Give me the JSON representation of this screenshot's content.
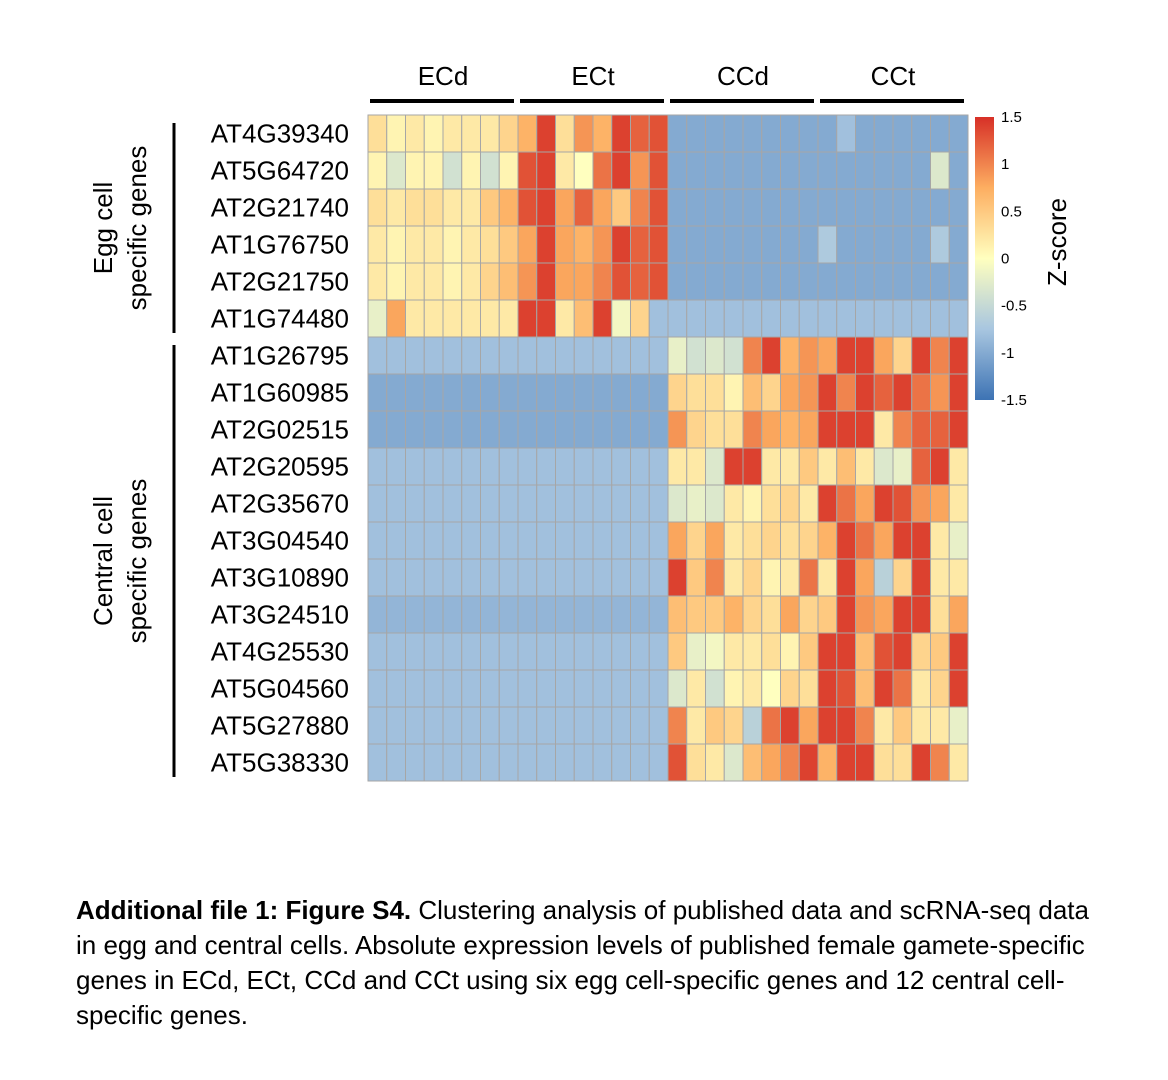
{
  "chart_data": {
    "type": "heatmap",
    "columns": {
      "groups": [
        {
          "label": "ECd",
          "count": 8
        },
        {
          "label": "ECt",
          "count": 8
        },
        {
          "label": "CCd",
          "count": 8
        },
        {
          "label": "CCt",
          "count": 8
        }
      ]
    },
    "row_groups": [
      {
        "label_line1": "Egg cell",
        "label_line2": "specific genes",
        "rows": 6
      },
      {
        "label_line1": "Central cell",
        "label_line2": "specific genes",
        "rows": 12
      }
    ],
    "rows": [
      "AT4G39340",
      "AT5G64720",
      "AT2G21740",
      "AT1G76750",
      "AT2G21750",
      "AT1G74480",
      "AT1G26795",
      "AT1G60985",
      "AT2G02515",
      "AT2G20595",
      "AT2G35670",
      "AT3G04540",
      "AT3G10890",
      "AT3G24510",
      "AT4G25530",
      "AT5G04560",
      "AT5G27880",
      "AT5G38330"
    ],
    "values": [
      [
        0.3,
        0.1,
        0.2,
        0.1,
        0.2,
        0.2,
        0.2,
        0.4,
        0.7,
        1.4,
        0.3,
        0.9,
        0.7,
        1.4,
        1.2,
        1.3,
        -1.0,
        -1.0,
        -1.0,
        -1.0,
        -1.0,
        -1.0,
        -1.0,
        -1.0,
        -1.0,
        -0.8,
        -1.0,
        -1.0,
        -1.0,
        -1.0,
        -1.0,
        -1.0
      ],
      [
        0.1,
        -0.3,
        0.1,
        0.1,
        -0.4,
        0.1,
        -0.4,
        0.1,
        1.3,
        1.4,
        0.2,
        0.0,
        1.1,
        1.4,
        0.9,
        1.3,
        -1.0,
        -1.0,
        -1.0,
        -1.0,
        -1.0,
        -1.0,
        -1.0,
        -1.0,
        -1.0,
        -1.0,
        -1.0,
        -1.0,
        -1.0,
        -1.0,
        -0.3,
        -1.0
      ],
      [
        0.3,
        0.2,
        0.3,
        0.3,
        0.2,
        0.2,
        0.5,
        0.7,
        1.3,
        1.4,
        0.8,
        1.2,
        0.8,
        0.5,
        1.0,
        1.3,
        -1.0,
        -1.0,
        -1.0,
        -1.0,
        -1.0,
        -1.0,
        -1.0,
        -1.0,
        -1.0,
        -1.0,
        -1.0,
        -1.0,
        -1.0,
        -1.0,
        -1.0,
        -1.0
      ],
      [
        0.2,
        0.1,
        0.2,
        0.2,
        0.1,
        0.2,
        0.3,
        0.5,
        0.8,
        1.4,
        0.8,
        0.7,
        0.9,
        1.4,
        1.2,
        1.3,
        -1.0,
        -1.0,
        -1.0,
        -1.0,
        -1.0,
        -1.0,
        -1.0,
        -1.0,
        -0.7,
        -1.0,
        -1.0,
        -1.0,
        -1.0,
        -1.0,
        -0.7,
        -1.0
      ],
      [
        0.2,
        0.1,
        0.2,
        0.2,
        0.1,
        0.2,
        0.4,
        0.6,
        0.9,
        1.4,
        0.8,
        0.8,
        1.0,
        1.3,
        1.2,
        1.3,
        -1.0,
        -1.0,
        -1.0,
        -1.0,
        -1.0,
        -1.0,
        -1.0,
        -1.0,
        -1.0,
        -1.0,
        -1.0,
        -1.0,
        -1.0,
        -1.0,
        -1.0,
        -1.0
      ],
      [
        -0.2,
        0.8,
        0.2,
        0.2,
        0.2,
        0.2,
        0.2,
        0.2,
        1.4,
        1.4,
        0.2,
        0.6,
        1.4,
        -0.1,
        0.4,
        -0.8,
        -0.8,
        -0.8,
        -0.8,
        -0.8,
        -0.8,
        -0.8,
        -0.8,
        -0.8,
        -0.8,
        -0.8,
        -0.8,
        -0.8,
        -0.8,
        -0.8,
        -0.8,
        -0.8
      ],
      [
        -0.8,
        -0.8,
        -0.8,
        -0.8,
        -0.8,
        -0.8,
        -0.8,
        -0.8,
        -0.8,
        -0.8,
        -0.8,
        -0.8,
        -0.8,
        -0.8,
        -0.8,
        -0.8,
        -0.2,
        -0.4,
        -0.3,
        -0.4,
        1.0,
        1.4,
        0.7,
        0.9,
        0.8,
        1.4,
        1.4,
        0.8,
        0.4,
        1.4,
        1.0,
        1.4
      ],
      [
        -1.0,
        -1.0,
        -1.0,
        -1.0,
        -1.0,
        -1.0,
        -1.0,
        -1.0,
        -1.0,
        -1.0,
        -1.0,
        -1.0,
        -1.0,
        -1.0,
        -1.0,
        -1.0,
        0.4,
        0.3,
        0.3,
        0.1,
        0.6,
        0.4,
        0.8,
        0.9,
        1.4,
        1.0,
        1.4,
        1.2,
        1.4,
        1.1,
        0.9,
        1.4
      ],
      [
        -1.0,
        -1.0,
        -1.0,
        -1.0,
        -1.0,
        -1.0,
        -1.0,
        -1.0,
        -1.0,
        -1.0,
        -1.0,
        -1.0,
        -1.0,
        -1.0,
        -1.0,
        -1.0,
        0.9,
        0.4,
        0.3,
        0.3,
        1.0,
        0.8,
        0.7,
        0.8,
        1.4,
        1.4,
        1.4,
        0.2,
        1.0,
        1.2,
        1.2,
        1.4
      ],
      [
        -0.8,
        -0.8,
        -0.8,
        -0.8,
        -0.8,
        -0.8,
        -0.8,
        -0.8,
        -0.8,
        -0.8,
        -0.8,
        -0.8,
        -0.8,
        -0.8,
        -0.8,
        -0.8,
        0.2,
        0.2,
        -0.3,
        1.4,
        1.4,
        0.2,
        0.2,
        0.5,
        0.2,
        0.6,
        0.2,
        -0.3,
        -0.2,
        1.2,
        1.4,
        0.2
      ],
      [
        -0.8,
        -0.8,
        -0.8,
        -0.8,
        -0.8,
        -0.8,
        -0.8,
        -0.8,
        -0.8,
        -0.8,
        -0.8,
        -0.8,
        -0.8,
        -0.8,
        -0.8,
        -0.8,
        -0.3,
        -0.2,
        -0.3,
        0.2,
        0.1,
        0.3,
        0.4,
        0.2,
        1.4,
        1.1,
        0.8,
        1.4,
        1.3,
        0.9,
        0.8,
        0.2
      ],
      [
        -0.8,
        -0.8,
        -0.8,
        -0.8,
        -0.8,
        -0.8,
        -0.8,
        -0.8,
        -0.8,
        -0.8,
        -0.8,
        -0.8,
        -0.8,
        -0.8,
        -0.8,
        -0.8,
        0.8,
        0.4,
        0.8,
        0.2,
        0.3,
        0.4,
        0.3,
        0.4,
        0.7,
        1.4,
        1.1,
        0.8,
        1.4,
        1.4,
        0.2,
        -0.2
      ],
      [
        -0.8,
        -0.8,
        -0.8,
        -0.8,
        -0.8,
        -0.8,
        -0.8,
        -0.8,
        -0.8,
        -0.8,
        -0.8,
        -0.8,
        -0.8,
        -0.8,
        -0.8,
        -0.8,
        1.4,
        0.5,
        1.0,
        0.2,
        0.4,
        0.1,
        0.2,
        1.1,
        0.2,
        1.4,
        0.8,
        -0.6,
        0.4,
        1.4,
        0.2,
        0.2
      ],
      [
        -0.9,
        -0.9,
        -0.9,
        -0.9,
        -0.9,
        -0.9,
        -0.9,
        -0.9,
        -0.9,
        -0.9,
        -0.9,
        -0.9,
        -0.9,
        -0.9,
        -0.9,
        -0.9,
        0.6,
        0.5,
        0.5,
        0.7,
        0.4,
        0.3,
        0.8,
        0.4,
        0.5,
        1.4,
        0.9,
        0.8,
        1.4,
        1.4,
        0.3,
        0.8
      ],
      [
        -0.8,
        -0.8,
        -0.8,
        -0.8,
        -0.8,
        -0.8,
        -0.8,
        -0.8,
        -0.8,
        -0.8,
        -0.8,
        -0.8,
        -0.8,
        -0.8,
        -0.8,
        -0.8,
        0.5,
        -0.2,
        -0.1,
        0.2,
        0.2,
        0.3,
        0.1,
        0.5,
        1.4,
        1.4,
        0.6,
        1.3,
        1.4,
        0.4,
        0.5,
        1.4
      ],
      [
        -0.8,
        -0.8,
        -0.8,
        -0.8,
        -0.8,
        -0.8,
        -0.8,
        -0.8,
        -0.8,
        -0.8,
        -0.8,
        -0.8,
        -0.8,
        -0.8,
        -0.8,
        -0.8,
        -0.3,
        0.2,
        -0.4,
        0.1,
        0.2,
        0.0,
        0.4,
        0.3,
        1.4,
        1.3,
        0.6,
        1.4,
        1.1,
        0.2,
        0.4,
        1.4
      ],
      [
        -0.8,
        -0.8,
        -0.8,
        -0.8,
        -0.8,
        -0.8,
        -0.8,
        -0.8,
        -0.8,
        -0.8,
        -0.8,
        -0.8,
        -0.8,
        -0.8,
        -0.8,
        -0.8,
        1.0,
        0.2,
        0.5,
        0.4,
        -0.6,
        1.1,
        1.4,
        0.8,
        1.4,
        1.4,
        1.0,
        0.2,
        0.5,
        0.2,
        0.2,
        -0.2
      ],
      [
        -0.8,
        -0.8,
        -0.8,
        -0.8,
        -0.8,
        -0.8,
        -0.8,
        -0.8,
        -0.8,
        -0.8,
        -0.8,
        -0.8,
        -0.8,
        -0.8,
        -0.8,
        -0.8,
        1.3,
        0.3,
        0.2,
        -0.3,
        0.6,
        0.8,
        1.0,
        1.4,
        0.7,
        1.4,
        1.4,
        0.3,
        0.3,
        1.4,
        1.0,
        0.2
      ]
    ],
    "colorbar": {
      "title": "Z-score",
      "ticks": [
        {
          "value": 1.5,
          "label": "1.5"
        },
        {
          "value": 1,
          "label": "1"
        },
        {
          "value": 0.5,
          "label": "0.5"
        },
        {
          "value": 0,
          "label": "0"
        },
        {
          "value": -0.5,
          "label": "-0.5"
        },
        {
          "value": -1,
          "label": "-1"
        },
        {
          "value": -1.5,
          "label": "-1.5"
        }
      ],
      "range": [
        -1.5,
        1.5
      ],
      "color_stops": [
        "#3d73b4",
        "#a8c6e0",
        "#ffffbf",
        "#fdae61",
        "#d73027"
      ]
    },
    "grid_color": "#a6a6a6"
  },
  "caption": {
    "bold": "Additional file 1: Figure S4.",
    "text": " Clustering analysis of published data and scRNA-seq data in egg and central cells. Absolute expression levels of published female gamete-specific genes in ECd, ECt, CCd and CCt using six egg cell-specific genes and 12 central cell-specific genes."
  }
}
